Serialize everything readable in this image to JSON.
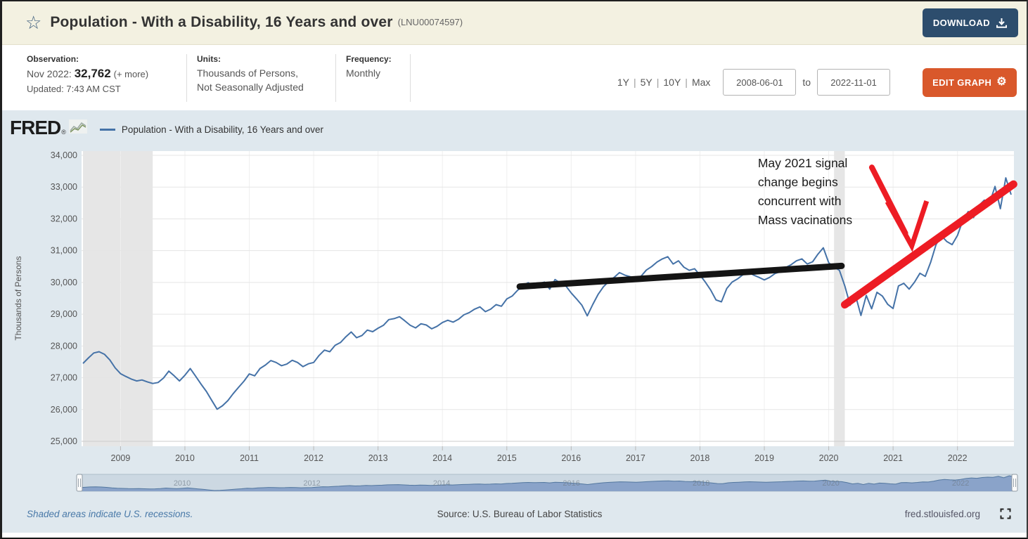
{
  "header": {
    "star_icon": "☆",
    "title": "Population - With a Disability, 16 Years and over",
    "series_id": "(LNU00074597)",
    "download_label": "DOWNLOAD"
  },
  "toolbar": {
    "observation_label": "Observation:",
    "observation_date": "Nov 2022:",
    "observation_value": "32,762",
    "observation_more": "(+ more)",
    "updated": "Updated: 7:43 AM CST",
    "units_label": "Units:",
    "units_line1": "Thousands of Persons,",
    "units_line2": "Not Seasonally Adjusted",
    "frequency_label": "Frequency:",
    "frequency_value": "Monthly",
    "ranges": [
      "1Y",
      "5Y",
      "10Y",
      "Max"
    ],
    "range_separator": "|",
    "date_start": "2008-06-01",
    "date_to_label": "to",
    "date_end": "2022-11-01",
    "edit_graph_label": "EDIT GRAPH",
    "gear_icon": "⚙"
  },
  "brand": {
    "name": "FRED",
    "reg": "®"
  },
  "legend": {
    "label": "Population - With a Disability, 16 Years and over"
  },
  "chart_data": {
    "type": "line",
    "title": "Population - With a Disability, 16 Years and over",
    "ylabel": "Thousands of Persons",
    "frequency": "monthly",
    "x_start": {
      "year": 2008,
      "month": 6
    },
    "x_end": {
      "year": 2022,
      "month": 11
    },
    "ylim": [
      25000,
      34000
    ],
    "ytick_interval": 1000,
    "xticks": [
      2009,
      2010,
      2011,
      2012,
      2013,
      2014,
      2015,
      2016,
      2017,
      2018,
      2019,
      2020,
      2021,
      2022
    ],
    "grid": true,
    "legend_position": "top-left",
    "colors": {
      "line": "#4572a7",
      "recession": "#e6e6e6",
      "plot_bg": "#ffffff",
      "panel_bg": "#dfe8ee",
      "navy_button": "#2d4d6d",
      "orange_button": "#d9582b",
      "header_bg": "#f3f1e1"
    },
    "values": [
      27450,
      27620,
      27780,
      27820,
      27740,
      27560,
      27310,
      27130,
      27040,
      26960,
      26900,
      26930,
      26870,
      26820,
      26850,
      26990,
      27210,
      27060,
      26900,
      27080,
      27290,
      27050,
      26800,
      26570,
      26290,
      26010,
      26120,
      26280,
      26500,
      26700,
      26890,
      27120,
      27060,
      27290,
      27400,
      27540,
      27480,
      27380,
      27430,
      27550,
      27480,
      27350,
      27440,
      27480,
      27700,
      27870,
      27820,
      28020,
      28110,
      28290,
      28440,
      28260,
      28330,
      28500,
      28450,
      28560,
      28650,
      28830,
      28860,
      28920,
      28790,
      28650,
      28570,
      28700,
      28660,
      28540,
      28620,
      28740,
      28810,
      28750,
      28840,
      28980,
      29050,
      29160,
      29230,
      29080,
      29160,
      29300,
      29250,
      29480,
      29570,
      29750,
      29900,
      29990,
      29880,
      29960,
      30010,
      29790,
      30090,
      29980,
      29890,
      29670,
      29480,
      29280,
      28950,
      29300,
      29620,
      29860,
      30030,
      30160,
      30310,
      30230,
      30180,
      30080,
      30190,
      30390,
      30500,
      30640,
      30740,
      30810,
      30580,
      30680,
      30480,
      30380,
      30430,
      30230,
      30010,
      29760,
      29450,
      29390,
      29810,
      30010,
      30110,
      30240,
      30330,
      30230,
      30160,
      30080,
      30160,
      30280,
      30340,
      30470,
      30560,
      30680,
      30740,
      30580,
      30650,
      30890,
      31090,
      30620,
      30480,
      30380,
      29890,
      29280,
      29590,
      28960,
      29590,
      29170,
      29690,
      29570,
      29310,
      29180,
      29890,
      29970,
      29790,
      30010,
      30290,
      30190,
      30630,
      31190,
      31470,
      31290,
      31190,
      31480,
      31950,
      32230,
      32040,
      32420,
      32590,
      32510,
      33020,
      32320,
      33290,
      32762
    ],
    "recessions": [
      {
        "start": 2008.417,
        "end": 2009.5
      },
      {
        "start": 2020.083,
        "end": 2020.25
      }
    ],
    "annotations": {
      "note_lines": [
        "May 2021 signal",
        "change begins",
        "concurrent with",
        "Mass vacinations"
      ],
      "note_anchor": {
        "year": 2018.9,
        "value": 33620
      },
      "black_trend": {
        "x1": 2015.2,
        "v1": 29870,
        "x2": 2020.2,
        "v2": 30520,
        "color": "#141414"
      },
      "red_trend": {
        "x1": 2020.25,
        "v1": 29300,
        "x2": 2022.87,
        "v2": 33090,
        "color": "#ed1c24"
      },
      "arrow": {
        "color": "#ed1c24",
        "shaft": [
          [
            2020.67,
            33620
          ],
          [
            2021.19,
            31550
          ]
        ],
        "head": [
          [
            2020.91,
            32540
          ],
          [
            2021.29,
            31150
          ],
          [
            2021.52,
            32560
          ]
        ]
      }
    }
  },
  "navigator": {
    "years": [
      2010,
      2012,
      2014,
      2016,
      2018,
      2020,
      2022
    ]
  },
  "footer": {
    "recession_note": "Shaded areas indicate U.S. recessions.",
    "source": "Source: U.S. Bureau of Labor Statistics",
    "site": "fred.stlouisfed.org"
  }
}
